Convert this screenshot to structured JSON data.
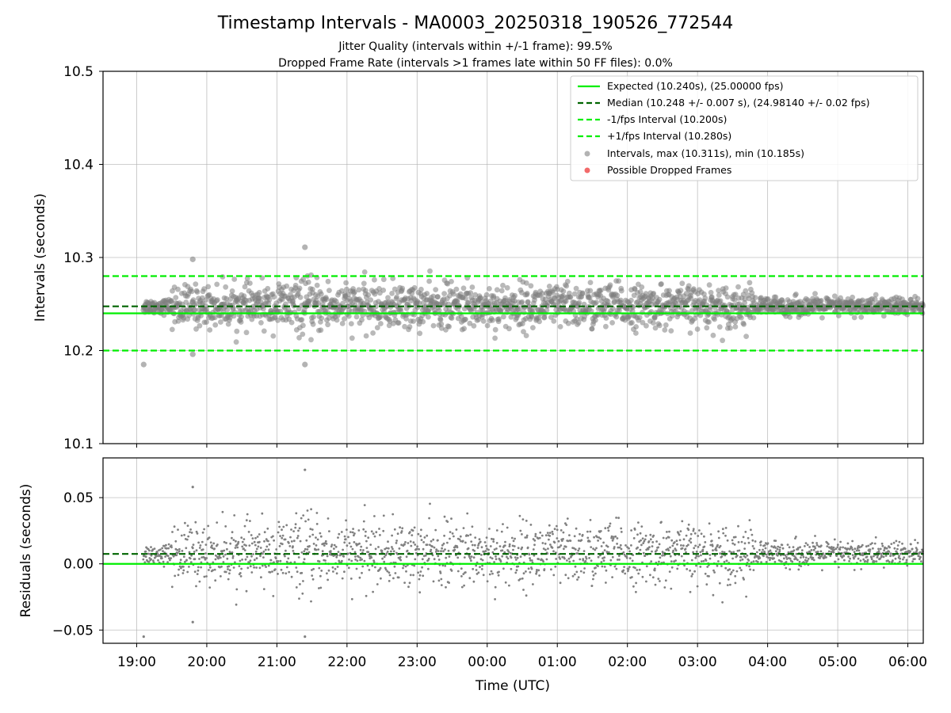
{
  "chart_data": {
    "type": "scatter",
    "title": "Timestamp Intervals - MA0003_20250318_190526_772544",
    "subtitle_lines": [
      "Jitter Quality (intervals within +/-1 frame): 99.5%",
      "Dropped Frame Rate (intervals >1 frames late within 50 FF files): 0.0%"
    ],
    "xlabel": "Time (UTC)",
    "x_ticks": [
      "19:00",
      "20:00",
      "21:00",
      "22:00",
      "23:00",
      "00:00",
      "01:00",
      "02:00",
      "03:00",
      "04:00",
      "05:00",
      "06:00"
    ],
    "x_range_hours": [
      18.52,
      30.22
    ],
    "data_start_hour": 19.09,
    "data_end_hour": 30.22,
    "grid": true,
    "legend_position": "top-right",
    "colors": {
      "expected": "#00ee00",
      "median": "#006400",
      "interval_band": "#00ee00",
      "points": "#808080",
      "dropped": "#f05050"
    },
    "top_panel": {
      "ylabel": "Intervals (seconds)",
      "ylim": [
        10.1,
        10.5
      ],
      "y_ticks": [
        "10.1",
        "10.2",
        "10.3",
        "10.4",
        "10.5"
      ],
      "y_tick_values": [
        10.1,
        10.2,
        10.3,
        10.4,
        10.5
      ],
      "series": [
        {
          "name": "Expected (10.240s), (25.00000 fps)",
          "kind": "hline",
          "y": 10.24,
          "style": "solid",
          "color": "#00ee00"
        },
        {
          "name": "Median (10.248 +/- 0.007 s), (24.98140 +/- 0.02 fps)",
          "kind": "hline",
          "y": 10.2475,
          "style": "dashed",
          "color": "#006400"
        },
        {
          "name": "-1/fps Interval (10.200s)",
          "kind": "hline",
          "y": 10.2,
          "style": "dashed",
          "color": "#00ee00"
        },
        {
          "name": "+1/fps Interval (10.280s)",
          "kind": "hline",
          "y": 10.28,
          "style": "dashed",
          "color": "#00ee00"
        },
        {
          "name": "Intervals, max (10.311s), min (10.185s)",
          "kind": "scatter",
          "color": "#808080"
        },
        {
          "name": "Possible Dropped Frames",
          "kind": "scatter",
          "color": "#f05050"
        }
      ],
      "notable_points": [
        {
          "x": 19.1,
          "y": 10.185
        },
        {
          "x": 19.8,
          "y": 10.298
        },
        {
          "x": 19.8,
          "y": 10.196
        },
        {
          "x": 21.4,
          "y": 10.311
        },
        {
          "x": 21.4,
          "y": 10.185
        }
      ]
    },
    "bottom_panel": {
      "ylabel": "Residuals (seconds)",
      "ylim": [
        -0.06,
        0.08
      ],
      "y_ticks": [
        "−0.05",
        "0.00",
        "0.05"
      ],
      "y_tick_values": [
        -0.05,
        0.0,
        0.05
      ],
      "hlines": [
        {
          "y": 0.0,
          "style": "solid",
          "color": "#00ee00"
        },
        {
          "y": 0.0075,
          "style": "dashed",
          "color": "#006400"
        }
      ],
      "notable_points": [
        {
          "x": 19.1,
          "y": -0.055
        },
        {
          "x": 19.8,
          "y": 0.058
        },
        {
          "x": 19.8,
          "y": -0.044
        },
        {
          "x": 21.4,
          "y": 0.071
        },
        {
          "x": 21.4,
          "y": -0.055
        }
      ]
    },
    "scatter_model": {
      "segments": [
        {
          "from": 19.09,
          "to": 19.5,
          "sd": 0.004
        },
        {
          "from": 19.5,
          "to": 21.0,
          "sd": 0.011
        },
        {
          "from": 21.0,
          "to": 21.8,
          "sd": 0.014
        },
        {
          "from": 21.8,
          "to": 26.0,
          "sd": 0.012
        },
        {
          "from": 26.0,
          "to": 27.8,
          "sd": 0.011
        },
        {
          "from": 27.8,
          "to": 30.22,
          "sd": 0.005
        }
      ],
      "interval_center": 10.2475,
      "residual_center": 0.0075,
      "approx_points": 1950
    }
  }
}
